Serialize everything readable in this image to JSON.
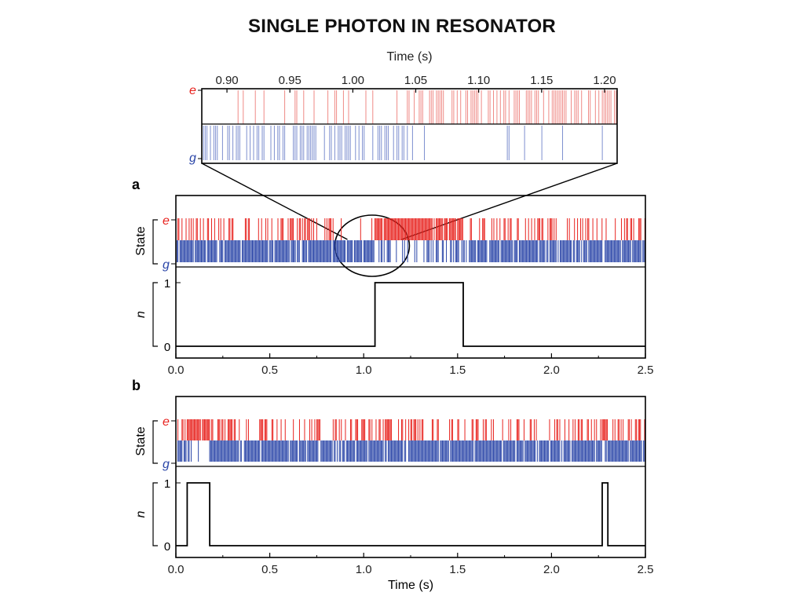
{
  "slide": {
    "title": "SINGLE PHOTON IN RESONATOR"
  },
  "colors": {
    "excited": "#e8231f",
    "excited_light": "#ef8a86",
    "ground": "#2b46a8",
    "ground_light": "#7e8fcf",
    "trace": "#000000"
  },
  "chart_data": [
    {
      "id": "zoom",
      "type": "line",
      "xlabel": "Time (s)",
      "xlim": [
        0.88,
        1.21
      ],
      "xticks": [
        "0.90",
        "0.95",
        "1.00",
        "1.05",
        "1.10",
        "1.15",
        "1.20"
      ],
      "state_labels": {
        "excited": "e",
        "ground": "g"
      },
      "segments": [
        {
          "x": [
            0.88,
            1.05
          ],
          "excited_density": 0.12,
          "ground_density": 0.55
        },
        {
          "x": [
            1.05,
            1.21
          ],
          "excited_density": 0.6,
          "ground_density": 0.08
        }
      ]
    },
    {
      "id": "a",
      "panel_label": "a",
      "type": "line",
      "state_ylabel": "State",
      "state_labels": {
        "excited": "e",
        "ground": "g"
      },
      "n_ylabel": "n",
      "n_ticks": [
        "0",
        "1"
      ],
      "xlim": [
        0.0,
        2.5
      ],
      "xticks": [
        "0.0",
        "0.5",
        "1.0",
        "1.5",
        "2.0",
        "2.5"
      ],
      "n_trace": {
        "x": [
          0.0,
          1.06,
          1.06,
          1.53,
          1.53,
          2.5
        ],
        "y": [
          0,
          0,
          1,
          1,
          0,
          0
        ]
      },
      "segments": [
        {
          "x": [
            0.0,
            1.06
          ],
          "excited_density": 0.3,
          "ground_density": 0.9
        },
        {
          "x": [
            1.06,
            1.53
          ],
          "excited_density": 0.92,
          "ground_density": 0.35
        },
        {
          "x": [
            1.53,
            2.5
          ],
          "excited_density": 0.3,
          "ground_density": 0.9
        }
      ],
      "zoom_region": [
        0.88,
        1.21
      ]
    },
    {
      "id": "b",
      "panel_label": "b",
      "type": "line",
      "state_ylabel": "State",
      "state_labels": {
        "excited": "e",
        "ground": "g"
      },
      "n_ylabel": "n",
      "n_ticks": [
        "0",
        "1"
      ],
      "xlabel": "Time (s)",
      "xlim": [
        0.0,
        2.5
      ],
      "xticks": [
        "0.0",
        "0.5",
        "1.0",
        "1.5",
        "2.0",
        "2.5"
      ],
      "n_trace": {
        "x": [
          0.0,
          0.06,
          0.06,
          0.18,
          0.18,
          2.27,
          2.27,
          2.3,
          2.3,
          2.5
        ],
        "y": [
          0,
          0,
          1,
          1,
          0,
          0,
          1,
          1,
          0,
          0
        ]
      },
      "segments": [
        {
          "x": [
            0.0,
            0.06
          ],
          "excited_density": 0.3,
          "ground_density": 0.9
        },
        {
          "x": [
            0.06,
            0.18
          ],
          "excited_density": 0.92,
          "ground_density": 0.4
        },
        {
          "x": [
            0.18,
            2.27
          ],
          "excited_density": 0.3,
          "ground_density": 0.9
        },
        {
          "x": [
            2.27,
            2.3
          ],
          "excited_density": 0.92,
          "ground_density": 0.4
        },
        {
          "x": [
            2.3,
            2.5
          ],
          "excited_density": 0.3,
          "ground_density": 0.9
        }
      ]
    }
  ]
}
